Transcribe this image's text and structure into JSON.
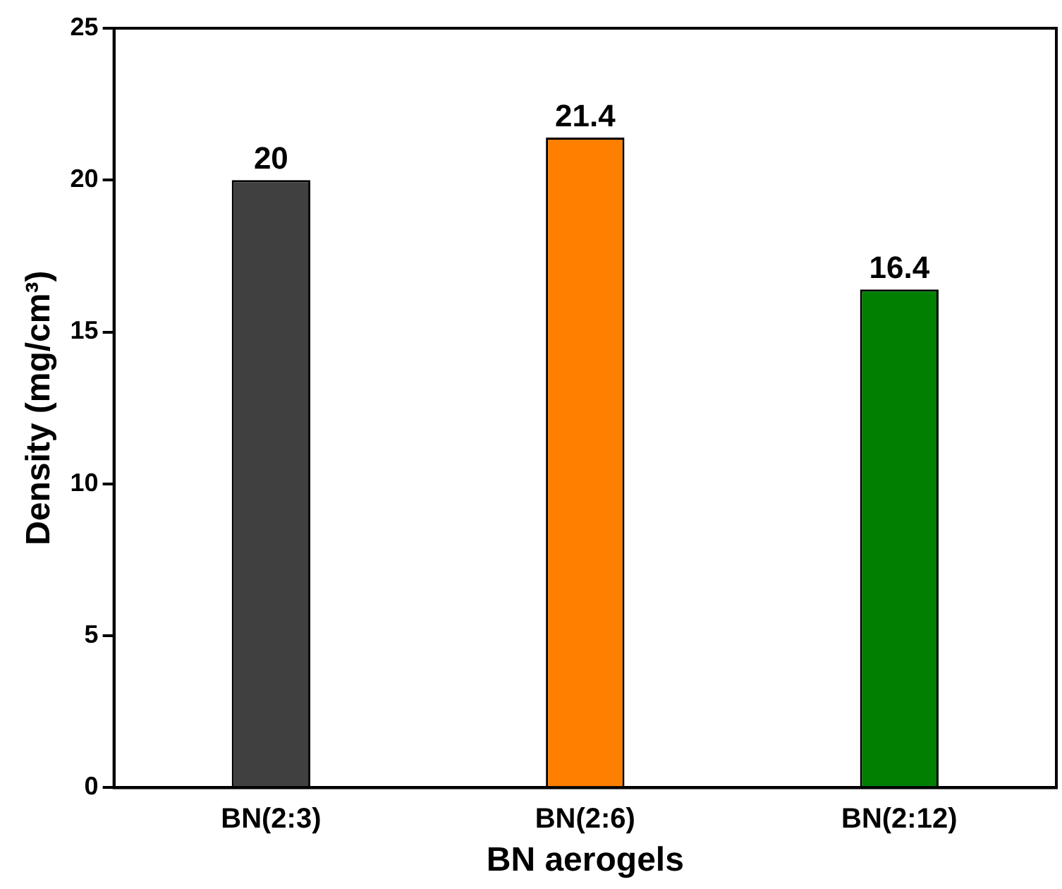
{
  "chart_data": {
    "type": "bar",
    "xlabel": "BN aerogels",
    "ylabel": "Density (mg/cm³)",
    "categories": [
      "BN(2:3)",
      "BN(2:6)",
      "BN(2:12)"
    ],
    "values": [
      20,
      21.4,
      16.4
    ],
    "colors": [
      "#404040",
      "#ff7f00",
      "#007f00"
    ],
    "ylim": [
      0,
      25
    ],
    "yticks": [
      0,
      5,
      10,
      15,
      20,
      25
    ],
    "grid": false,
    "legend": false,
    "data_labels": true
  }
}
